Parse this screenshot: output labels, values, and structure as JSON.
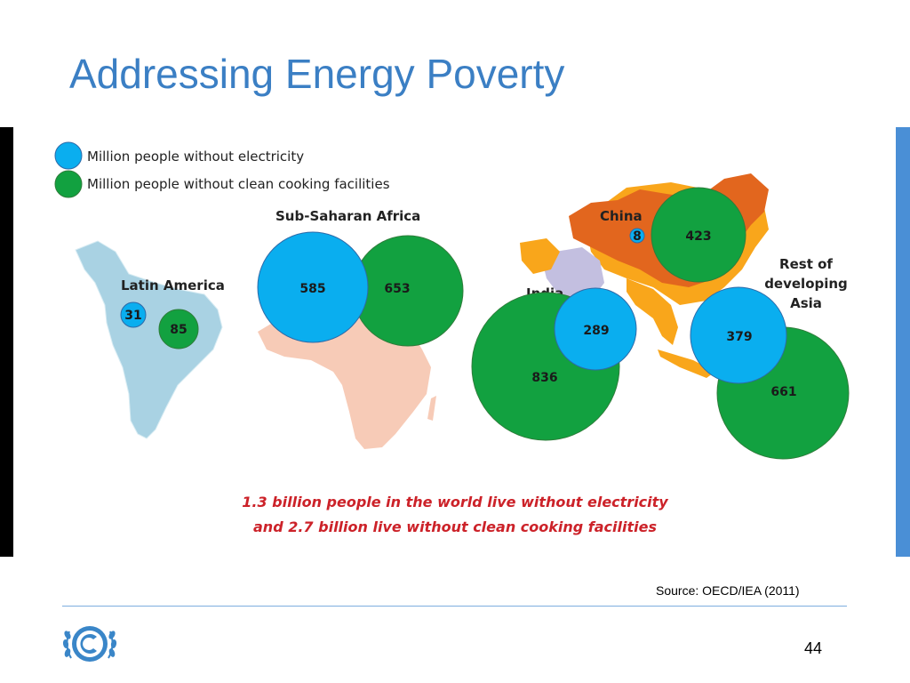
{
  "title": "Addressing Energy Poverty",
  "legend": {
    "electricity": {
      "label": "Million people without electricity",
      "color": "#0aaeef"
    },
    "cooking": {
      "label": "Million people without clean cooking facilities",
      "color": "#12a140"
    }
  },
  "regions": [
    {
      "name": "Latin America",
      "electricity": "31",
      "cooking": "85"
    },
    {
      "name": "Sub-Saharan Africa",
      "electricity": "585",
      "cooking": "653"
    },
    {
      "name": "India",
      "electricity": "289",
      "cooking": "836"
    },
    {
      "name": "China",
      "electricity": "8",
      "cooking": "423"
    },
    {
      "name_line1": "Rest of",
      "name_line2": "developing",
      "name_line3": "Asia",
      "electricity": "379",
      "cooking": "661"
    }
  ],
  "headline": {
    "line1": "1.3 billion people in the world live without electricity",
    "line2": "and 2.7 billion live without clean cooking facilities"
  },
  "source": "Source: OECD/IEA (2011)",
  "page_number": "44",
  "colors": {
    "title": "#3b7fc4",
    "headline": "#cc2229",
    "accent_bar": "#4a8fd6"
  }
}
